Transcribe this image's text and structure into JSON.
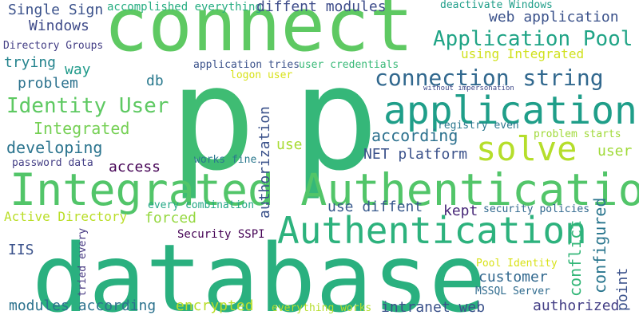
{
  "words": [
    {
      "text": "connect",
      "color": "#5ec962"
    },
    {
      "text": "p",
      "color": "#3fbc73"
    },
    {
      "text": "p",
      "color": "#35b779"
    },
    {
      "text": "database",
      "color": "#2ab07f"
    },
    {
      "text": "Integrated Authentication",
      "color": "#52c569"
    },
    {
      "text": "Authentication",
      "color": "#2db27d"
    },
    {
      "text": "application",
      "color": "#1f9e89"
    },
    {
      "text": "solve",
      "color": "#b5de2b"
    },
    {
      "text": "connection string",
      "color": "#31688e"
    },
    {
      "text": "Application Pool",
      "color": "#20a486"
    },
    {
      "text": "Identity User",
      "color": "#5ec962"
    },
    {
      "text": "Single Sign",
      "color": "#3b528b"
    },
    {
      "text": "Windows",
      "color": "#3e4a89"
    },
    {
      "text": "trying",
      "color": "#25848e"
    },
    {
      "text": "way",
      "color": "#1f9a8a"
    },
    {
      "text": "problem",
      "color": "#2c728e"
    },
    {
      "text": "Directory Groups",
      "color": "#433e85"
    },
    {
      "text": "accomplished everything",
      "color": "#26ad81"
    },
    {
      "text": "diffent modules",
      "color": "#3e4c8a"
    },
    {
      "text": "deactivate Windows",
      "color": "#1f9e89"
    },
    {
      "text": "web application",
      "color": "#3b528b"
    },
    {
      "text": "using Integrated",
      "color": "#d0e11c"
    },
    {
      "text": "application tries",
      "color": "#3b528b"
    },
    {
      "text": "user credentials",
      "color": "#38b977"
    },
    {
      "text": "logon user",
      "color": "#d8e219"
    },
    {
      "text": "db",
      "color": "#29798e"
    },
    {
      "text": "without impersonation",
      "color": "#3e4989"
    },
    {
      "text": "registry even",
      "color": "#2a778e"
    },
    {
      "text": "problem starts",
      "color": "#a0da39"
    },
    {
      "text": "according",
      "color": "#2c718e"
    },
    {
      "text": "Integrated",
      "color": "#75d054"
    },
    {
      "text": "developing",
      "color": "#2b748e"
    },
    {
      "text": "password data",
      "color": "#433e85"
    },
    {
      "text": "access",
      "color": "#440154"
    },
    {
      "text": "works fine",
      "color": "#2a788e"
    },
    {
      "text": "NET platform",
      "color": "#3b528b"
    },
    {
      "text": "user",
      "color": "#a0da39"
    },
    {
      "text": "use",
      "color": "#a8db34"
    },
    {
      "text": "authorization",
      "color": "#3b528b"
    },
    {
      "text": "every combination",
      "color": "#22a785"
    },
    {
      "text": "forced",
      "color": "#95d840"
    },
    {
      "text": "Active Directory",
      "color": "#bade28"
    },
    {
      "text": "use diffent",
      "color": "#38598c"
    },
    {
      "text": "kept",
      "color": "#482878"
    },
    {
      "text": "security policies",
      "color": "#31688e"
    },
    {
      "text": "configured",
      "color": "#2a768e"
    },
    {
      "text": "Security SSPI",
      "color": "#440154"
    },
    {
      "text": "IIS",
      "color": "#3b528b"
    },
    {
      "text": "tried every",
      "color": "#453781"
    },
    {
      "text": "conflict",
      "color": "#35b779"
    },
    {
      "text": "Pool Identity",
      "color": "#d8e219"
    },
    {
      "text": "MSSQL Server",
      "color": "#2f6b8e"
    },
    {
      "text": "customer",
      "color": "#31688e"
    },
    {
      "text": "point",
      "color": "#3b528b"
    },
    {
      "text": "modules according",
      "color": "#2c728e"
    },
    {
      "text": "encrypted",
      "color": "#b8de29"
    },
    {
      "text": "everything works",
      "color": "#b5de2b"
    },
    {
      "text": "intranet web",
      "color": "#3b528b"
    },
    {
      "text": "authorized",
      "color": "#433e85"
    }
  ]
}
